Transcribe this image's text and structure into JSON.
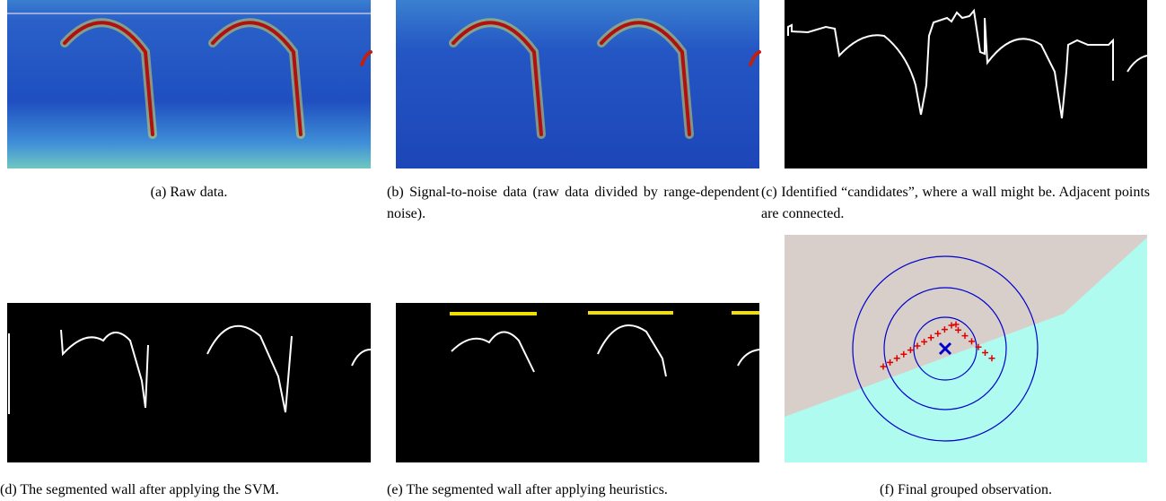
{
  "figure": {
    "subfigures": [
      {
        "caption": "(a) Raw data."
      },
      {
        "caption": "(b) Signal-to-noise data (raw data divided by range-dependent noise)."
      },
      {
        "caption": "(c) Identified “candidates”, where a wall might be. Adjacent points are connected."
      },
      {
        "caption": "(d) The segmented wall after applying the SVM."
      },
      {
        "caption": "(e) The segmented wall after applying heuristics."
      },
      {
        "caption": "(f) Final grouped observation."
      }
    ]
  }
}
